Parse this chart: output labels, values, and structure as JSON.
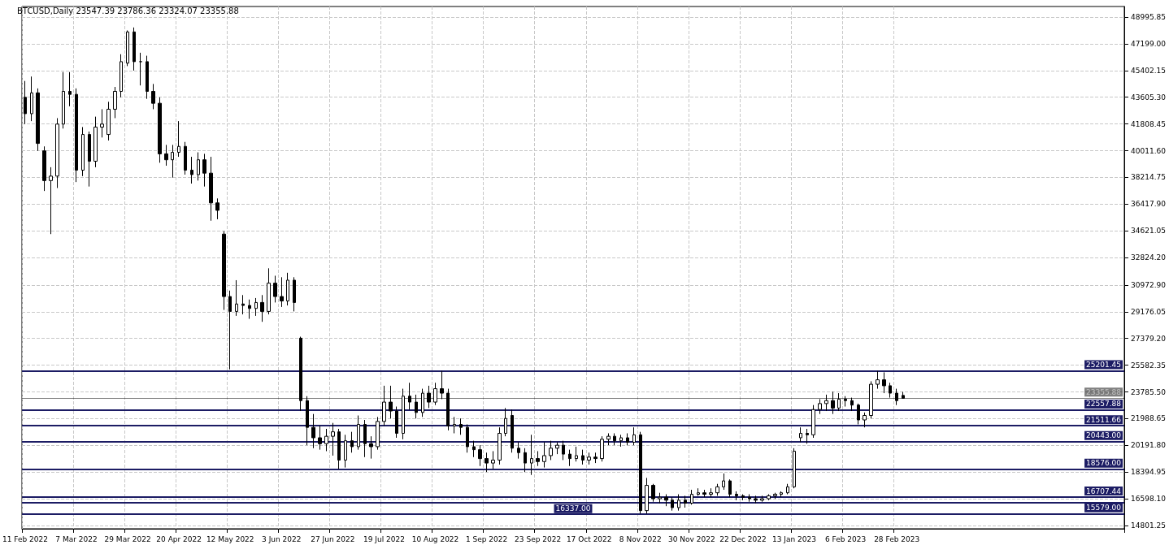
{
  "chart_data": {
    "type": "candlestick",
    "title": "BTCUSD,Daily 23547.39 23786.36 23324.07 23355.88",
    "categories": [
      "11 Feb 2022",
      null,
      null,
      null,
      null,
      null,
      null,
      null,
      "7 Mar 2022",
      null,
      null,
      null,
      null,
      null,
      null,
      null,
      "29 Mar 2022",
      null,
      null,
      null,
      null,
      null,
      null,
      null,
      "20 Apr 2022",
      null,
      null,
      null,
      null,
      null,
      null,
      null,
      "12 May 2022",
      null,
      null,
      null,
      null,
      null,
      null,
      null,
      "3 Jun 2022",
      null,
      null,
      null,
      null,
      null,
      null,
      null,
      "27 Jun 2022",
      null,
      null,
      null,
      null,
      null,
      null,
      null,
      "19 Jul 2022",
      null,
      null,
      null,
      null,
      null,
      null,
      null,
      "10 Aug 2022",
      null,
      null,
      null,
      null,
      null,
      null,
      null,
      "1 Sep 2022",
      null,
      null,
      null,
      null,
      null,
      null,
      null,
      "23 Sep 2022",
      null,
      null,
      null,
      null,
      null,
      null,
      null,
      "17 Oct 2022",
      null,
      null,
      null,
      null,
      null,
      null,
      null,
      "8 Nov 2022",
      null,
      null,
      null,
      null,
      null,
      null,
      null,
      "30 Nov 2022",
      null,
      null,
      null,
      null,
      null,
      null,
      null,
      "22 Dec 2022",
      null,
      null,
      null,
      null,
      null,
      null,
      null,
      "13 Jan 2023",
      null,
      null,
      null,
      null,
      null,
      null,
      null,
      "6 Feb 2023",
      null,
      null,
      null,
      null,
      null,
      null,
      null,
      "28 Feb 2023",
      null,
      null,
      null,
      null,
      null,
      null,
      null,
      null,
      null,
      null,
      null,
      null,
      null,
      null,
      null,
      null,
      null,
      null,
      null,
      null,
      null,
      null,
      null,
      null,
      null,
      null,
      null,
      null,
      null,
      null,
      null,
      null,
      null,
      null,
      null
    ],
    "ohlc": [
      [
        43600,
        44700,
        41800,
        42500
      ],
      [
        42500,
        45000,
        42000,
        43900
      ],
      [
        43900,
        44200,
        40000,
        40500
      ],
      [
        40000,
        40300,
        37300,
        38000
      ],
      [
        38000,
        38900,
        34400,
        38300
      ],
      [
        38300,
        42200,
        37500,
        41800
      ],
      [
        41800,
        45300,
        41500,
        44000
      ],
      [
        44000,
        45300,
        43000,
        43800
      ],
      [
        43800,
        44200,
        37900,
        38700
      ],
      [
        38700,
        41600,
        38300,
        41100
      ],
      [
        41100,
        41300,
        37600,
        39300
      ],
      [
        39300,
        42300,
        38900,
        41600
      ],
      [
        41600,
        42800,
        40900,
        41800
      ],
      [
        41100,
        43300,
        40700,
        42800
      ],
      [
        42800,
        44300,
        42200,
        44000
      ],
      [
        44000,
        46500,
        43600,
        46000
      ],
      [
        45900,
        48100,
        45700,
        48000
      ],
      [
        48000,
        48300,
        45400,
        46000
      ],
      [
        46000,
        46600,
        44400,
        46000
      ],
      [
        46000,
        46400,
        43500,
        44000
      ],
      [
        44000,
        44500,
        42800,
        43200
      ],
      [
        43200,
        43600,
        39200,
        39800
      ],
      [
        39800,
        40400,
        39000,
        39400
      ],
      [
        39400,
        40400,
        38200,
        39900
      ],
      [
        39900,
        42000,
        39600,
        40300
      ],
      [
        40300,
        40600,
        38400,
        38700
      ],
      [
        38700,
        39600,
        37800,
        38400
      ],
      [
        38400,
        39900,
        38000,
        39400
      ],
      [
        39400,
        39800,
        37600,
        38500
      ],
      [
        38500,
        39600,
        35300,
        36500
      ],
      [
        36500,
        36800,
        35400,
        36000
      ],
      [
        34400,
        34600,
        29300,
        30200
      ],
      [
        30200,
        30600,
        25300,
        29200
      ],
      [
        29200,
        31300,
        28900,
        29700
      ],
      [
        29700,
        30300,
        29000,
        29600
      ],
      [
        29600,
        30000,
        28700,
        29400
      ],
      [
        29400,
        30100,
        28900,
        29800
      ],
      [
        29800,
        30300,
        28500,
        29200
      ],
      [
        29200,
        32100,
        29000,
        31100
      ],
      [
        31100,
        31600,
        29800,
        30200
      ],
      [
        30200,
        31500,
        29500,
        29900
      ],
      [
        29900,
        31800,
        29600,
        31300
      ],
      [
        31300,
        31500,
        29200,
        29800
      ],
      [
        27400,
        27500,
        22500,
        23200
      ],
      [
        23200,
        23500,
        20200,
        21400
      ],
      [
        21400,
        22300,
        20000,
        20700
      ],
      [
        20700,
        21500,
        19900,
        20300
      ],
      [
        20300,
        21300,
        19800,
        20800
      ],
      [
        20800,
        21700,
        19500,
        21100
      ],
      [
        21100,
        21300,
        18600,
        19200
      ],
      [
        19200,
        20900,
        18700,
        20500
      ],
      [
        20500,
        21100,
        19700,
        20100
      ],
      [
        20100,
        22200,
        19900,
        21600
      ],
      [
        21600,
        21900,
        19400,
        20300
      ],
      [
        20300,
        20800,
        19300,
        20100
      ],
      [
        20100,
        22100,
        19900,
        21800
      ],
      [
        21800,
        24200,
        21500,
        23100
      ],
      [
        23100,
        24200,
        22000,
        22500
      ],
      [
        22500,
        22800,
        20700,
        21000
      ],
      [
        21000,
        24000,
        20600,
        23500
      ],
      [
        23500,
        24400,
        22600,
        23100
      ],
      [
        23100,
        23600,
        22000,
        22400
      ],
      [
        22400,
        24000,
        22100,
        23700
      ],
      [
        23700,
        24200,
        22700,
        23100
      ],
      [
        23100,
        24400,
        22900,
        24000
      ],
      [
        24000,
        25200,
        23300,
        23700
      ],
      [
        23700,
        24000,
        21200,
        21500
      ],
      [
        21500,
        22100,
        21000,
        21600
      ],
      [
        21600,
        22000,
        20900,
        21400
      ],
      [
        21400,
        21600,
        19700,
        20100
      ],
      [
        20100,
        20500,
        19400,
        19900
      ],
      [
        19900,
        20200,
        18800,
        19300
      ],
      [
        19300,
        19700,
        18400,
        19000
      ],
      [
        19000,
        19800,
        18600,
        19200
      ],
      [
        19200,
        21400,
        18900,
        21000
      ],
      [
        21000,
        22700,
        20800,
        22000
      ],
      [
        22200,
        22600,
        19700,
        20000
      ],
      [
        20000,
        20400,
        19300,
        19700
      ],
      [
        19700,
        20000,
        18400,
        19000
      ],
      [
        19000,
        20900,
        18200,
        19300
      ],
      [
        19300,
        19800,
        18800,
        19100
      ],
      [
        19100,
        20400,
        18700,
        19500
      ],
      [
        19500,
        20500,
        19200,
        20000
      ],
      [
        20000,
        20400,
        19600,
        20200
      ],
      [
        20200,
        20500,
        19200,
        19600
      ],
      [
        19600,
        19900,
        18800,
        19300
      ],
      [
        19300,
        20100,
        19100,
        19500
      ],
      [
        19500,
        19900,
        18900,
        19200
      ],
      [
        19200,
        19700,
        18900,
        19400
      ],
      [
        19400,
        19700,
        19000,
        19300
      ],
      [
        19300,
        20800,
        19100,
        20600
      ],
      [
        20600,
        21000,
        20200,
        20800
      ],
      [
        20800,
        21000,
        20200,
        20500
      ],
      [
        20500,
        20900,
        20100,
        20700
      ],
      [
        20700,
        21000,
        20200,
        20400
      ],
      [
        20400,
        21400,
        20200,
        20900
      ],
      [
        20900,
        21100,
        15600,
        15800
      ],
      [
        15800,
        18000,
        15600,
        17500
      ],
      [
        17500,
        17600,
        16400,
        16600
      ],
      [
        16600,
        17000,
        16300,
        16700
      ],
      [
        16700,
        16900,
        16100,
        16500
      ],
      [
        16500,
        16700,
        15800,
        16000
      ],
      [
        16000,
        16900,
        15800,
        16500
      ],
      [
        16500,
        16800,
        16000,
        16300
      ],
      [
        16300,
        17200,
        16200,
        16900
      ],
      [
        16900,
        17300,
        16800,
        17000
      ],
      [
        17000,
        17200,
        16700,
        16900
      ],
      [
        16900,
        17300,
        16700,
        17000
      ],
      [
        17000,
        17600,
        16800,
        17400
      ],
      [
        17400,
        18300,
        17200,
        17800
      ],
      [
        17800,
        17900,
        16700,
        16900
      ],
      [
        16900,
        17100,
        16500,
        16800
      ],
      [
        16800,
        16900,
        16500,
        16700
      ],
      [
        16700,
        16900,
        16400,
        16600
      ],
      [
        16600,
        16800,
        16300,
        16500
      ],
      [
        16500,
        16800,
        16400,
        16600
      ],
      [
        16600,
        16900,
        16500,
        16800
      ],
      [
        16800,
        17000,
        16600,
        16900
      ],
      [
        16900,
        17100,
        16700,
        17000
      ],
      [
        17000,
        17600,
        16900,
        17400
      ],
      [
        17400,
        20000,
        17300,
        19800
      ],
      [
        20700,
        21400,
        20400,
        21000
      ],
      [
        21000,
        21300,
        20300,
        20900
      ],
      [
        20900,
        22900,
        20700,
        22600
      ],
      [
        22600,
        23300,
        22300,
        23000
      ],
      [
        23000,
        23600,
        22500,
        23200
      ],
      [
        23200,
        23800,
        22300,
        22700
      ],
      [
        22700,
        23700,
        22500,
        23300
      ],
      [
        23300,
        23500,
        22800,
        23200
      ],
      [
        23200,
        23400,
        22500,
        22900
      ],
      [
        22900,
        23000,
        21600,
        21900
      ],
      [
        21900,
        22400,
        21400,
        22200
      ],
      [
        22200,
        24500,
        22000,
        24300
      ],
      [
        24300,
        25200,
        24000,
        24600
      ],
      [
        24600,
        25100,
        23700,
        24200
      ],
      [
        24200,
        24400,
        23400,
        23700
      ],
      [
        23700,
        24000,
        22900,
        23200
      ],
      [
        23547.39,
        23786.36,
        23324.07,
        23355.88
      ],
      null,
      null,
      null,
      null,
      null,
      null,
      null,
      null,
      null,
      null,
      null,
      null,
      null,
      null,
      null,
      null,
      null,
      null,
      null,
      null,
      null,
      null,
      null,
      null,
      null,
      null,
      null,
      null,
      null,
      null,
      null,
      null,
      null,
      null
    ],
    "color": "#000000",
    "ylim": [
      14580,
      49710
    ],
    "yticks": [
      {
        "value": 48995.85,
        "label": "48995.85"
      },
      {
        "value": 47199,
        "label": "47199.00"
      },
      {
        "value": 45402.15,
        "label": "45402.15"
      },
      {
        "value": 43605.3,
        "label": "43605.30"
      },
      {
        "value": 41808.45,
        "label": "41808.45"
      },
      {
        "value": 40011.6,
        "label": "40011.60"
      },
      {
        "value": 38214.75,
        "label": "38214.75"
      },
      {
        "value": 36417.9,
        "label": "36417.90"
      },
      {
        "value": 34621.05,
        "label": "34621.05"
      },
      {
        "value": 32824.2,
        "label": "32824.20"
      },
      {
        "value": 30972.9,
        "label": "30972.90"
      },
      {
        "value": 29176.05,
        "label": "29176.05"
      },
      {
        "value": 27379.2,
        "label": "27379.20"
      },
      {
        "value": 25582.35,
        "label": "25582.35"
      },
      {
        "value": 23785.5,
        "label": "23785.50"
      },
      {
        "value": 21988.65,
        "label": "21988.65"
      },
      {
        "value": 20191.8,
        "label": "20191.80"
      },
      {
        "value": 18394.95,
        "label": "18394.95"
      },
      {
        "value": 16598.1,
        "label": "16598.10"
      },
      {
        "value": 14801.25,
        "label": "14801.25"
      }
    ],
    "grid": true,
    "ref_lines": [
      {
        "axis": "y",
        "value": 25201.45,
        "label": "25201.45",
        "color": "#1c1c64"
      },
      {
        "axis": "y",
        "value": 23355.88,
        "label": "23355.88",
        "color": "#000000"
      },
      {
        "axis": "y",
        "value": 22557.88,
        "label": "22557.88",
        "color": "#1c1c64"
      },
      {
        "axis": "y",
        "value": 21511.66,
        "label": "21511.66",
        "color": "#1c1c64"
      },
      {
        "axis": "y",
        "value": 20443,
        "label": "20443.00",
        "color": "#1c1c64"
      },
      {
        "axis": "y",
        "value": 18576,
        "label": "18576.00",
        "color": "#1c1c64"
      },
      {
        "axis": "y",
        "value": 16707.44,
        "label": "16707.44",
        "color": "#1c1c64"
      },
      {
        "axis": "y",
        "value": 16337,
        "label": "16337.00",
        "color": "#1c1c64"
      },
      {
        "axis": "y",
        "value": 15579,
        "label": "15579.00",
        "color": "#1c1c64"
      }
    ]
  }
}
